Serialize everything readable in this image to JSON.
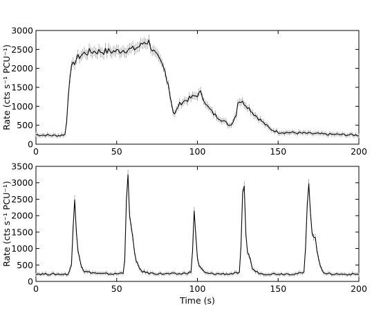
{
  "chart_data": [
    {
      "type": "line",
      "title": "",
      "xlabel": "",
      "ylabel": "Rate (cts s⁻¹ PCU⁻¹)",
      "xlim": [
        0,
        200
      ],
      "ylim": [
        0,
        3000
      ],
      "xticks": [
        "0",
        "50",
        "100",
        "150",
        "200"
      ],
      "yticks": [
        "0",
        "500",
        "1000",
        "1500",
        "2000",
        "2500",
        "3000"
      ],
      "grid": false,
      "error_bars": true,
      "colors": {
        "line": "#000000",
        "errorbar": "#9a9a9a"
      },
      "series": [
        {
          "x": [
            0,
            5,
            10,
            15,
            18,
            19,
            20,
            21,
            22,
            25,
            28,
            30,
            35,
            40,
            45,
            50,
            55,
            60,
            65,
            67,
            68,
            70,
            72,
            75,
            78,
            80,
            82,
            83,
            84,
            85,
            86,
            88,
            90,
            95,
            100,
            102,
            104,
            106,
            108,
            110,
            115,
            118,
            120,
            122,
            124,
            125,
            126,
            130,
            135,
            140,
            145,
            150,
            160,
            170,
            180,
            190,
            200
          ],
          "y": [
            250,
            240,
            230,
            230,
            260,
            600,
            1300,
            1800,
            2000,
            2250,
            2350,
            2400,
            2450,
            2450,
            2450,
            2450,
            2500,
            2500,
            2600,
            2700,
            2700,
            2700,
            2500,
            2300,
            2100,
            1900,
            1600,
            1300,
            1100,
            850,
            780,
            1000,
            1100,
            1200,
            1300,
            1350,
            1200,
            1000,
            900,
            800,
            650,
            550,
            500,
            600,
            800,
            1100,
            1150,
            1050,
            800,
            600,
            400,
            320,
            300,
            280,
            260,
            250,
            240
          ]
        }
      ]
    },
    {
      "type": "line",
      "title": "",
      "xlabel": "Time (s)",
      "ylabel": "Rate (cts s⁻¹ PCU⁻¹)",
      "xlim": [
        0,
        200
      ],
      "ylim": [
        0,
        3500
      ],
      "xticks": [
        "0",
        "50",
        "100",
        "150",
        "200"
      ],
      "yticks": [
        "0",
        "500",
        "1000",
        "1500",
        "2000",
        "2500",
        "3000",
        "3500"
      ],
      "grid": false,
      "error_bars": true,
      "colors": {
        "line": "#000000",
        "errorbar": "#9a9a9a"
      },
      "series": [
        {
          "x": [
            0,
            10,
            20,
            22,
            23,
            24,
            25,
            26,
            28,
            30,
            40,
            50,
            54,
            55,
            56,
            57,
            58,
            59,
            60,
            61,
            62,
            64,
            66,
            70,
            80,
            90,
            96,
            97,
            98,
            99,
            100,
            101,
            102,
            105,
            110,
            120,
            126,
            127,
            128,
            129,
            130,
            131,
            132,
            134,
            136,
            140,
            150,
            160,
            166,
            167,
            168,
            169,
            170,
            171,
            172,
            173,
            174,
            176,
            178,
            180,
            190,
            200
          ],
          "y": [
            230,
            220,
            220,
            500,
            1600,
            2500,
            1600,
            1000,
            500,
            300,
            230,
            230,
            260,
            700,
            2500,
            3150,
            2000,
            1600,
            1400,
            900,
            600,
            400,
            300,
            250,
            230,
            230,
            280,
            900,
            2200,
            1400,
            700,
            500,
            400,
            250,
            230,
            230,
            260,
            1000,
            2600,
            2800,
            1500,
            900,
            800,
            400,
            300,
            230,
            230,
            230,
            260,
            1000,
            2400,
            3000,
            2200,
            1500,
            1300,
            1400,
            900,
            500,
            300,
            230,
            220,
            220
          ]
        }
      ]
    }
  ]
}
